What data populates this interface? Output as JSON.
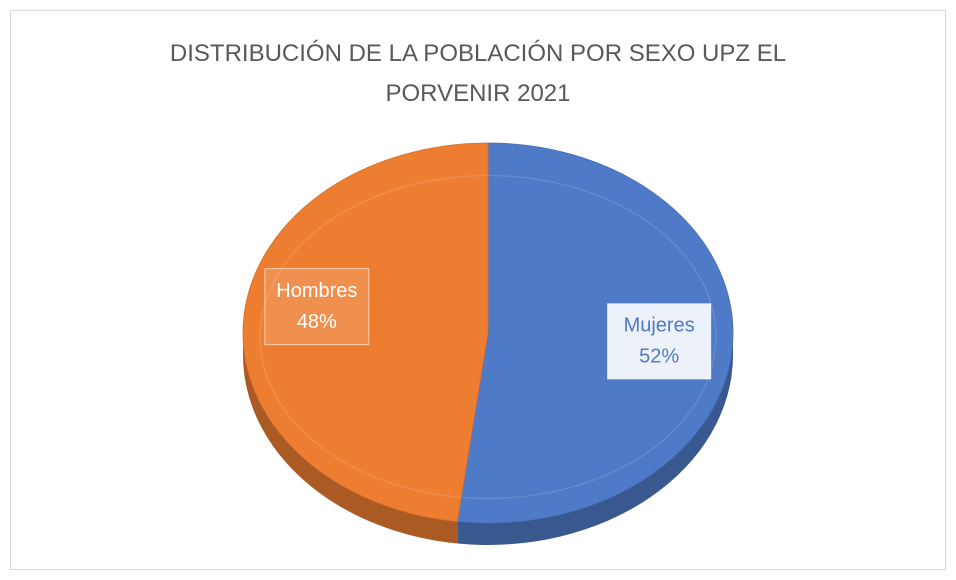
{
  "chart_data": {
    "type": "pie",
    "title": "DISTRIBUCIÓN DE LA POBLACIÓN POR SEXO UPZ EL PORVENIR 2021",
    "categories": [
      "Mujeres",
      "Hombres"
    ],
    "values": [
      52,
      48
    ],
    "value_labels": [
      "52%",
      "48%"
    ],
    "colors": [
      "#4e7ac7",
      "#ed7d31"
    ]
  }
}
